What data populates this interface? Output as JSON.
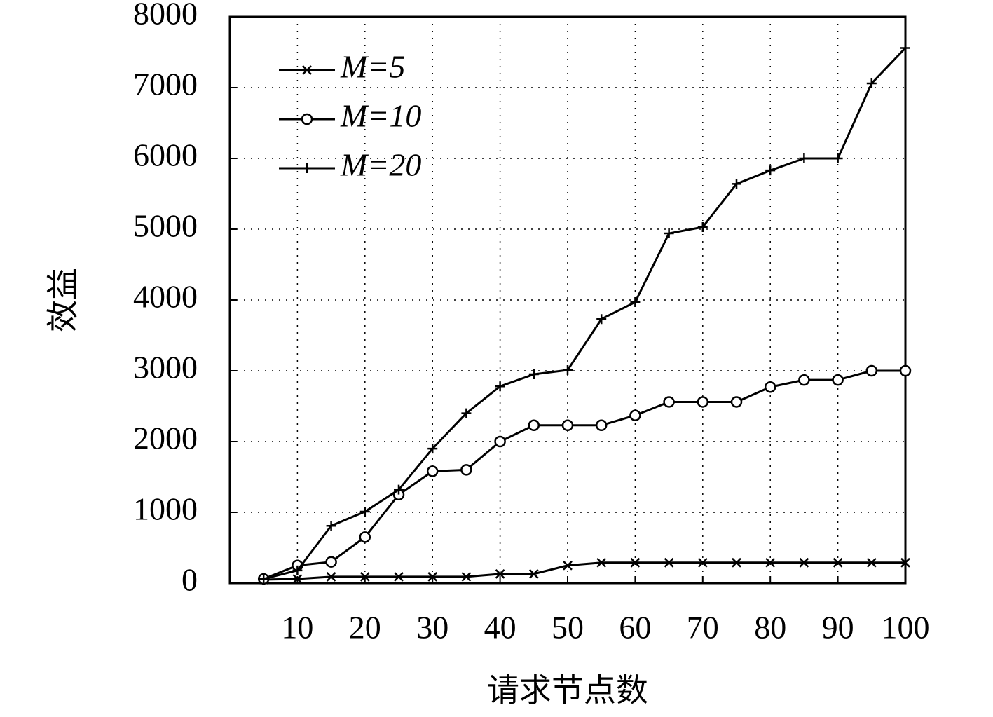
{
  "chart_data": {
    "type": "line",
    "xlabel": "请求节点数",
    "ylabel": "效益",
    "x": [
      5,
      10,
      15,
      20,
      25,
      30,
      35,
      40,
      45,
      50,
      55,
      60,
      65,
      70,
      75,
      80,
      85,
      90,
      95,
      100
    ],
    "series": [
      {
        "name": "M=5",
        "color": "#000000",
        "marker": "x",
        "values": [
          50,
          60,
          90,
          90,
          90,
          90,
          90,
          130,
          130,
          250,
          290,
          290,
          290,
          290,
          290,
          290,
          290,
          290,
          290,
          290
        ]
      },
      {
        "name": "M=10",
        "color": "#000000",
        "marker": "o",
        "values": [
          60,
          250,
          300,
          650,
          1250,
          1580,
          1600,
          2000,
          2230,
          2230,
          2230,
          2370,
          2560,
          2560,
          2560,
          2770,
          2870,
          2870,
          3000,
          3000
        ]
      },
      {
        "name": "M=20",
        "color": "#000000",
        "marker": "+",
        "values": [
          60,
          180,
          810,
          1010,
          1320,
          1900,
          2400,
          2780,
          2950,
          3010,
          3730,
          3970,
          4940,
          5030,
          5640,
          5830,
          6000,
          6000,
          7060,
          7560
        ]
      }
    ],
    "xlim": [
      0,
      100
    ],
    "xticks": [
      10,
      20,
      30,
      40,
      50,
      60,
      70,
      80,
      90,
      100
    ],
    "ylim": [
      0,
      8000
    ],
    "yticks": [
      0,
      1000,
      2000,
      3000,
      4000,
      5000,
      6000,
      7000,
      8000
    ],
    "grid": true,
    "legend": "upper left"
  }
}
